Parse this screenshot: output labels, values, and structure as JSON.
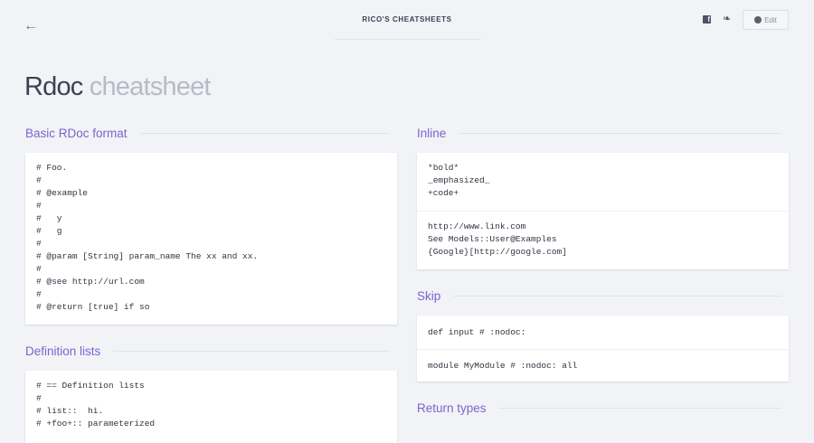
{
  "header": {
    "brand": "RICO'S CHEATSHEETS",
    "edit_label": "Edit",
    "facebook_glyph": "f",
    "twitter_glyph": "🐦"
  },
  "title": {
    "main": "Rdoc",
    "sub": "cheatsheet"
  },
  "sections": {
    "basic": {
      "title": "Basic RDoc format",
      "blocks": [
        "# Foo.\n#\n# @example\n#\n#   y\n#   g\n#\n# @param [String] param_name The xx and xx.\n#\n# @see http://url.com\n#\n# @return [true] if so"
      ]
    },
    "deflists": {
      "title": "Definition lists",
      "blocks": [
        "# == Definition lists\n#\n# list::  hi.\n# +foo+:: parameterized"
      ]
    },
    "inline": {
      "title": "Inline",
      "blocks": [
        "*bold*\n_emphasized_\n+code+",
        "http://www.link.com\nSee Models::User@Examples\n{Google}[http://google.com]"
      ]
    },
    "skip": {
      "title": "Skip",
      "blocks": [
        "def input # :nodoc:",
        "module MyModule # :nodoc: all"
      ]
    },
    "return": {
      "title": "Return types"
    }
  }
}
